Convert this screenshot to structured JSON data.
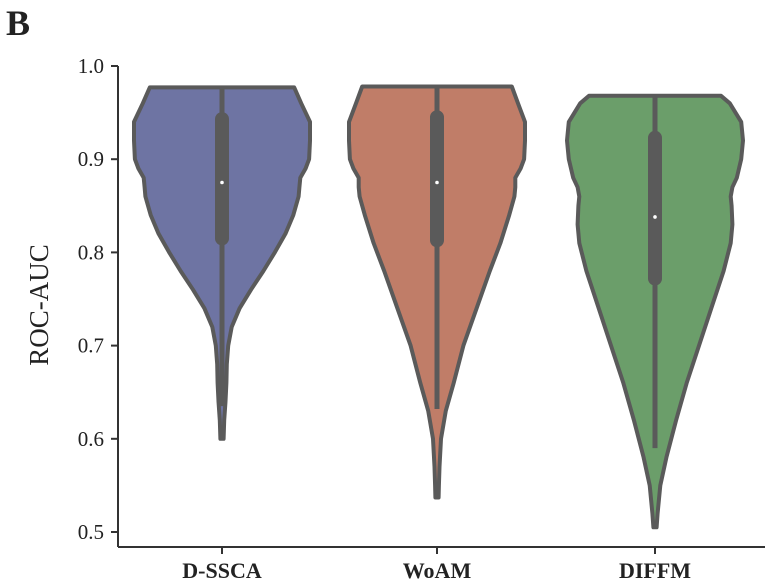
{
  "panel_label": "B",
  "colors": {
    "outline": "#5a5a5a",
    "axis": "#333333",
    "series": [
      "#6e74a3",
      "#c07d68",
      "#6b9e6a"
    ]
  },
  "chart_data": {
    "type": "violin",
    "title": "",
    "xlabel": "",
    "ylabel": "ROC-AUC",
    "ylim": [
      0.5,
      1.0
    ],
    "yticks": [
      0.5,
      0.6,
      0.7,
      0.8,
      0.9,
      1.0
    ],
    "ytick_labels": [
      "0.5",
      "0.6",
      "0.7",
      "0.8",
      "0.9",
      "1.0"
    ],
    "categories": [
      "D-SSCA",
      "WoAM",
      "DIFFM"
    ],
    "series": [
      {
        "category": "D-SSCA",
        "min": 0.6,
        "max": 0.977,
        "q1": 0.815,
        "median": 0.875,
        "q3": 0.943,
        "whisker_low": 0.635,
        "whisker_high": 0.977,
        "profile": [
          [
            0.6,
            0.018
          ],
          [
            0.62,
            0.025
          ],
          [
            0.64,
            0.04
          ],
          [
            0.66,
            0.05
          ],
          [
            0.68,
            0.055
          ],
          [
            0.7,
            0.07
          ],
          [
            0.72,
            0.11
          ],
          [
            0.74,
            0.2
          ],
          [
            0.76,
            0.33
          ],
          [
            0.78,
            0.47
          ],
          [
            0.8,
            0.6
          ],
          [
            0.82,
            0.72
          ],
          [
            0.84,
            0.81
          ],
          [
            0.86,
            0.87
          ],
          [
            0.87,
            0.88
          ],
          [
            0.88,
            0.89
          ],
          [
            0.89,
            0.95
          ],
          [
            0.9,
            0.99
          ],
          [
            0.92,
            1.0
          ],
          [
            0.94,
            1.0
          ],
          [
            0.96,
            0.9
          ],
          [
            0.977,
            0.82
          ]
        ]
      },
      {
        "category": "WoAM",
        "min": 0.537,
        "max": 0.978,
        "q1": 0.813,
        "median": 0.875,
        "q3": 0.945,
        "whisker_low": 0.632,
        "whisker_high": 0.978,
        "profile": [
          [
            0.537,
            0.018
          ],
          [
            0.55,
            0.022
          ],
          [
            0.57,
            0.028
          ],
          [
            0.6,
            0.045
          ],
          [
            0.63,
            0.1
          ],
          [
            0.66,
            0.19
          ],
          [
            0.7,
            0.3
          ],
          [
            0.74,
            0.45
          ],
          [
            0.78,
            0.6
          ],
          [
            0.81,
            0.72
          ],
          [
            0.84,
            0.82
          ],
          [
            0.86,
            0.88
          ],
          [
            0.87,
            0.89
          ],
          [
            0.88,
            0.89
          ],
          [
            0.89,
            0.95
          ],
          [
            0.9,
            0.99
          ],
          [
            0.92,
            1.0
          ],
          [
            0.94,
            1.0
          ],
          [
            0.96,
            0.92
          ],
          [
            0.978,
            0.85
          ]
        ]
      },
      {
        "category": "DIFFM",
        "min": 0.505,
        "max": 0.968,
        "q1": 0.772,
        "median": 0.838,
        "q3": 0.923,
        "whisker_low": 0.59,
        "whisker_high": 0.968,
        "profile": [
          [
            0.505,
            0.018
          ],
          [
            0.52,
            0.03
          ],
          [
            0.55,
            0.06
          ],
          [
            0.58,
            0.13
          ],
          [
            0.62,
            0.24
          ],
          [
            0.66,
            0.36
          ],
          [
            0.7,
            0.5
          ],
          [
            0.74,
            0.64
          ],
          [
            0.78,
            0.78
          ],
          [
            0.81,
            0.86
          ],
          [
            0.83,
            0.88
          ],
          [
            0.85,
            0.87
          ],
          [
            0.86,
            0.86
          ],
          [
            0.87,
            0.88
          ],
          [
            0.88,
            0.93
          ],
          [
            0.9,
            0.98
          ],
          [
            0.92,
            1.0
          ],
          [
            0.94,
            0.98
          ],
          [
            0.96,
            0.85
          ],
          [
            0.968,
            0.75
          ]
        ]
      }
    ],
    "grid": false,
    "legend": "none"
  }
}
